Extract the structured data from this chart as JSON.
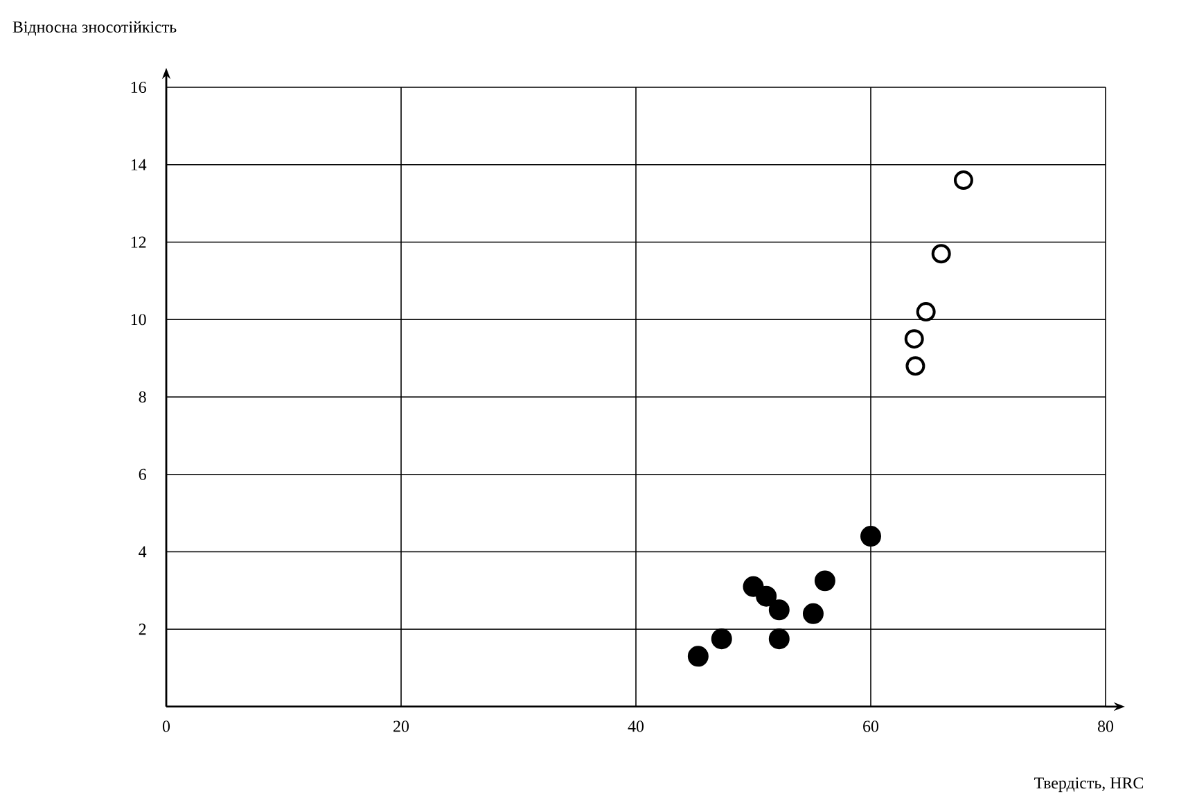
{
  "chart_data": {
    "type": "scatter",
    "xlabel": "Твердість, HRC",
    "ylabel": "Відносна зносотійкість",
    "xlim": [
      0,
      80
    ],
    "xticks": [
      0,
      20,
      40,
      60,
      80
    ],
    "ylim": [
      0,
      16
    ],
    "yticks": [
      2,
      4,
      6,
      8,
      10,
      12,
      14,
      16
    ],
    "grid": true,
    "series": [
      {
        "color": "#000000",
        "marker": "circle",
        "x": [
          60,
          50,
          51.1,
          52.2,
          56.1,
          55.1,
          52.2,
          47.3,
          45.3
        ],
        "values": [
          4.4,
          3.1,
          2.85,
          2.5,
          3.25,
          2.4,
          1.75,
          1.75,
          1.3
        ]
      },
      {
        "color": "#000000",
        "marker": "open circle",
        "x": [
          67.9,
          66,
          64.7,
          63.7,
          63.8
        ],
        "values": [
          13.6,
          11.7,
          10.2,
          9.5,
          8.8
        ]
      }
    ]
  }
}
